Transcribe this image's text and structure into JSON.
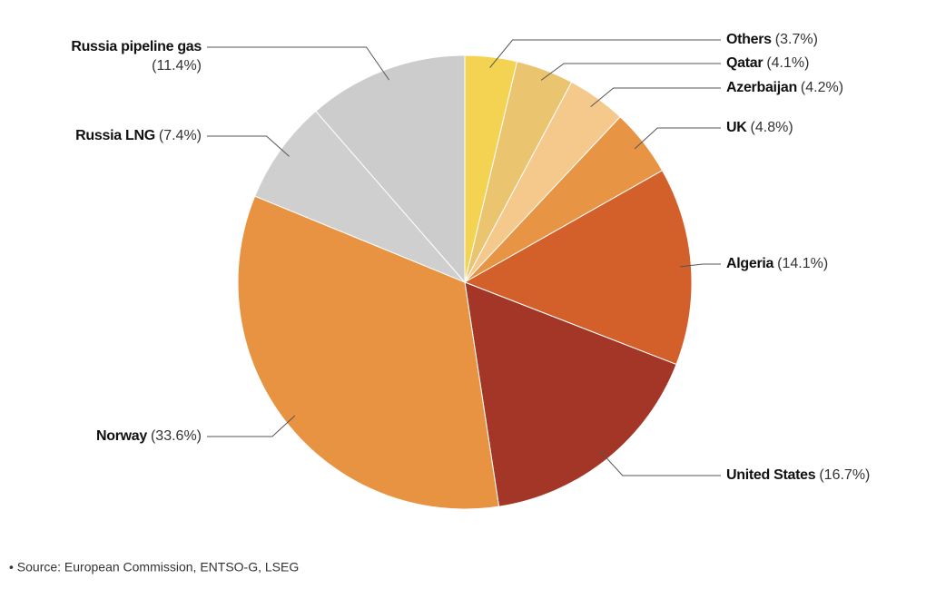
{
  "chart_data": {
    "type": "pie",
    "categories": [
      "Others",
      "Qatar",
      "Azerbaijan",
      "UK",
      "Algeria",
      "United States",
      "Norway",
      "Russia LNG",
      "Russia pipeline gas"
    ],
    "values": [
      3.7,
      4.1,
      4.2,
      4.8,
      14.1,
      16.7,
      33.6,
      7.4,
      11.4
    ],
    "value_labels": [
      "(3.7%)",
      "(4.1%)",
      "(4.2%)",
      "(4.8%)",
      "(14.1%)",
      "(16.7%)",
      "(33.6%)",
      "(7.4%)",
      "(11.4%)"
    ],
    "colors": [
      "#f4d352",
      "#ebc46f",
      "#f5c98b",
      "#e79544",
      "#d35f2a",
      "#a33626",
      "#e79341",
      "#cfcfcf",
      "#cccccc"
    ],
    "source": "• Source: European Commission, ENTSO-G, LSEG"
  }
}
